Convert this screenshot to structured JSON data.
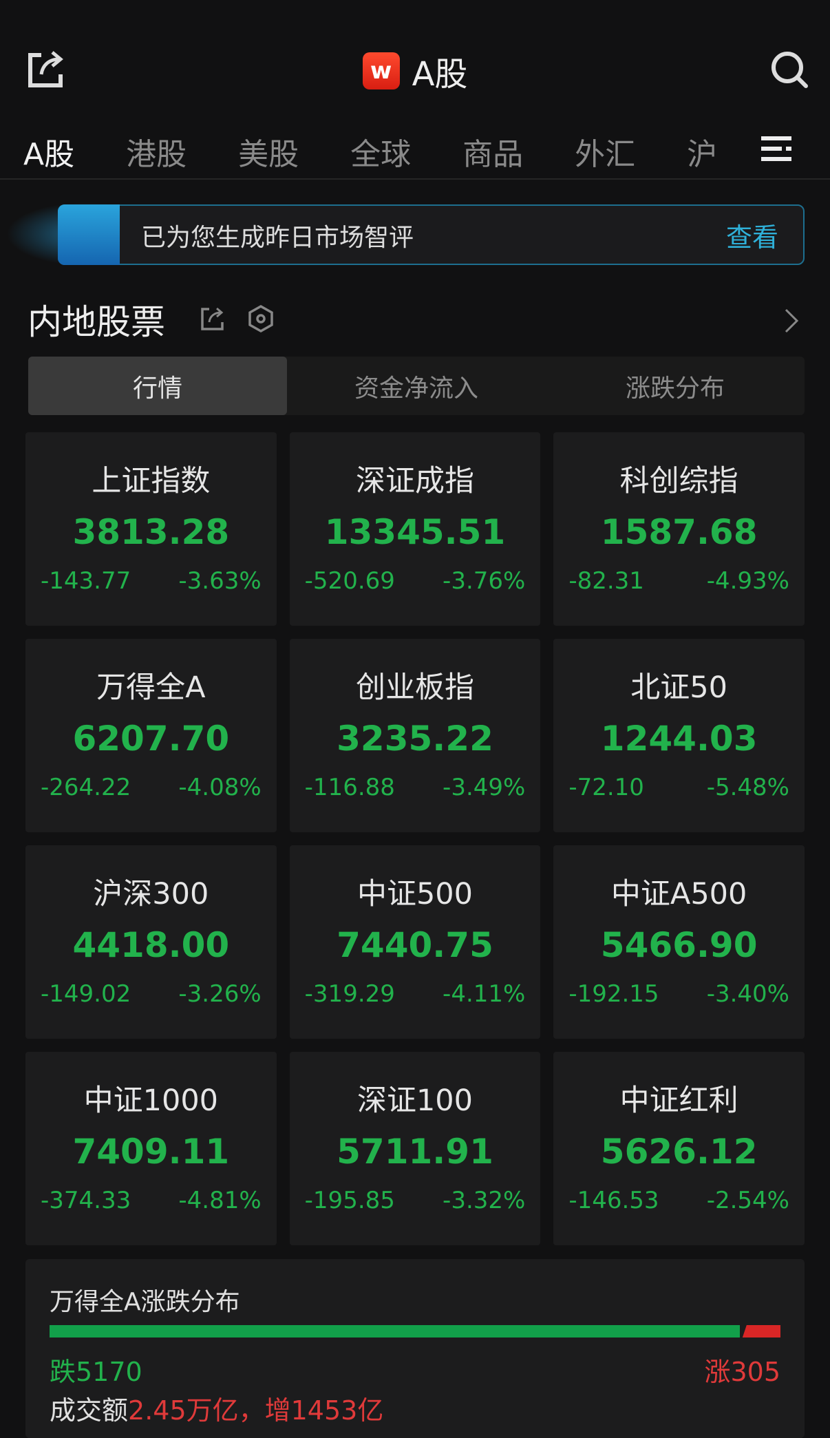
{
  "header": {
    "logo_letter": "w",
    "title": "A股",
    "icons": [
      "share-icon",
      "search-icon",
      "menu-icon"
    ]
  },
  "tabs": [
    {
      "label": "A股",
      "active": true
    },
    {
      "label": "港股"
    },
    {
      "label": "美股"
    },
    {
      "label": "全球"
    },
    {
      "label": "商品"
    },
    {
      "label": "外汇"
    },
    {
      "label": "沪"
    }
  ],
  "banner": {
    "text": "已为您生成昨日市场智评",
    "action": "查看"
  },
  "section": {
    "title": "内地股票"
  },
  "segments": [
    {
      "label": "行情",
      "active": true
    },
    {
      "label": "资金净流入"
    },
    {
      "label": "涨跌分布"
    }
  ],
  "indices": [
    {
      "name": "上证指数",
      "value": "3813.28",
      "change": "-143.77",
      "pct": "-3.63%"
    },
    {
      "name": "深证成指",
      "value": "13345.51",
      "change": "-520.69",
      "pct": "-3.76%"
    },
    {
      "name": "科创综指",
      "value": "1587.68",
      "change": "-82.31",
      "pct": "-4.93%"
    },
    {
      "name": "万得全A",
      "value": "6207.70",
      "change": "-264.22",
      "pct": "-4.08%"
    },
    {
      "name": "创业板指",
      "value": "3235.22",
      "change": "-116.88",
      "pct": "-3.49%"
    },
    {
      "name": "北证50",
      "value": "1244.03",
      "change": "-72.10",
      "pct": "-5.48%"
    },
    {
      "name": "沪深300",
      "value": "4418.00",
      "change": "-149.02",
      "pct": "-3.26%"
    },
    {
      "name": "中证500",
      "value": "7440.75",
      "change": "-319.29",
      "pct": "-4.11%"
    },
    {
      "name": "中证A500",
      "value": "5466.90",
      "change": "-192.15",
      "pct": "-3.40%"
    },
    {
      "name": "中证1000",
      "value": "7409.11",
      "change": "-374.33",
      "pct": "-4.81%"
    },
    {
      "name": "深证100",
      "value": "5711.91",
      "change": "-195.85",
      "pct": "-3.32%"
    },
    {
      "name": "中证红利",
      "value": "5626.12",
      "change": "-146.53",
      "pct": "-2.54%"
    }
  ],
  "distribution": {
    "title": "万得全A涨跌分布",
    "down_label": "跌5170",
    "up_label": "涨305",
    "down_count": 5170,
    "up_count": 305,
    "volume_label": "成交额",
    "volume_value": "2.45万亿，增1453亿"
  },
  "colors": {
    "down": "#22b24c",
    "up": "#e03a3a",
    "accent": "#2fb0d8"
  }
}
